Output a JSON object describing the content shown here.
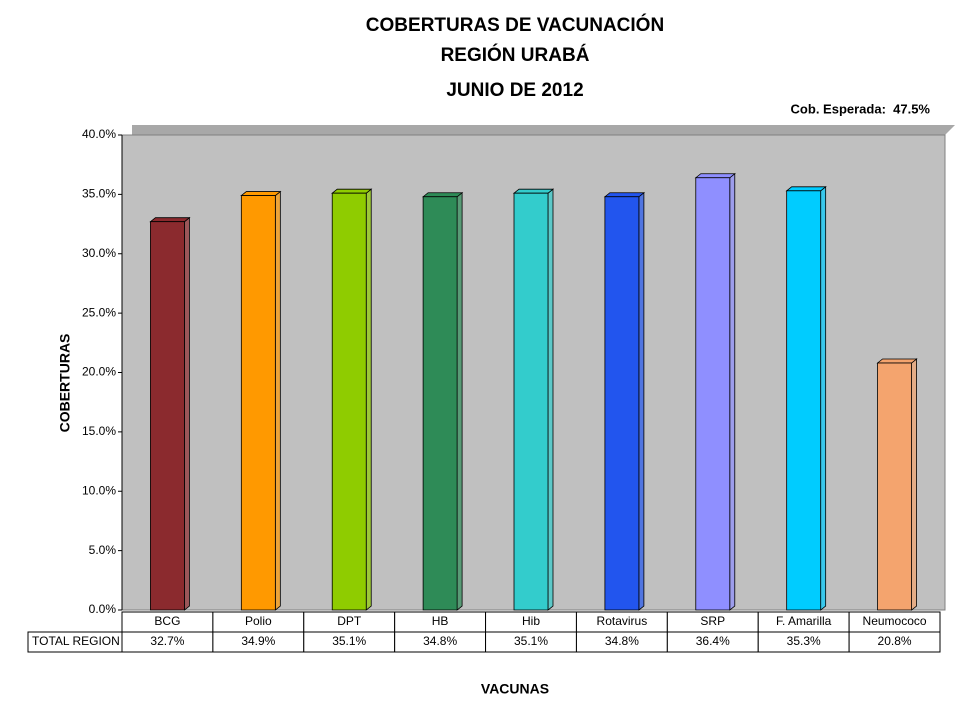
{
  "chart_data": {
    "type": "bar",
    "title": [
      "COBERTURAS DE VACUNACIÓN",
      "REGIÓN URABÁ",
      "JUNIO DE 2012"
    ],
    "annotation": "Cob. Esperada:  47.5%",
    "y_label": "COBERTURAS",
    "x_label": "VACUNAS",
    "table_row_label": "TOTAL REGION",
    "categories": [
      "BCG",
      "Polio",
      "DPT",
      "HB",
      "Hib",
      "Rotavirus",
      "SRP",
      "F. Amarilla",
      "Neumococo"
    ],
    "values": [
      32.7,
      34.9,
      35.1,
      34.8,
      35.1,
      34.8,
      36.4,
      35.3,
      20.8
    ],
    "value_labels": [
      "32.7%",
      "34.9%",
      "35.1%",
      "34.8%",
      "35.1%",
      "34.8%",
      "36.4%",
      "35.3%",
      "20.8%"
    ],
    "colors": [
      "#8b2a2e",
      "#ff9900",
      "#8fcc00",
      "#2e8b57",
      "#33cccc",
      "#2255ee",
      "#8f8fff",
      "#00ccff",
      "#f4a46e"
    ],
    "ylim": [
      0,
      40
    ],
    "yticks": [
      {
        "value": 0,
        "label": "0.0%"
      },
      {
        "value": 5,
        "label": "5.0%"
      },
      {
        "value": 10,
        "label": "10.0%"
      },
      {
        "value": 15,
        "label": "15.0%"
      },
      {
        "value": 20,
        "label": "20.0%"
      },
      {
        "value": 25,
        "label": "25.0%"
      },
      {
        "value": 30,
        "label": "30.0%"
      },
      {
        "value": 35,
        "label": "35.0%"
      },
      {
        "value": 40,
        "label": "40.0%"
      }
    ],
    "grid": false
  }
}
